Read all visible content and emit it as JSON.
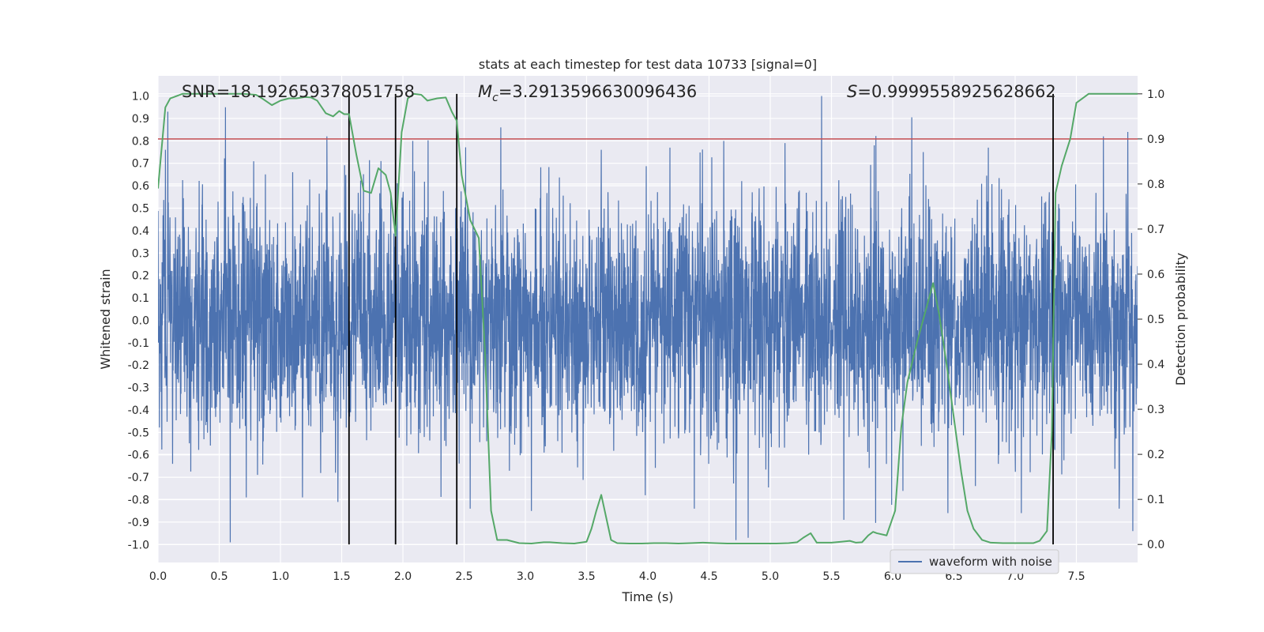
{
  "chart_data": {
    "type": "line",
    "title": "stats at each timestep for test data 10733 [signal=0]",
    "xlabel": "Time (s)",
    "ylabel_left": "Whitened strain",
    "ylabel_right": "Detection probability",
    "xlim": [
      0.0,
      8.0
    ],
    "ylim_left": [
      -1.08,
      1.09
    ],
    "ylim_right": [
      -0.04,
      1.04
    ],
    "x_ticks": [
      "0.0",
      "0.5",
      "1.0",
      "1.5",
      "2.0",
      "2.5",
      "3.0",
      "3.5",
      "4.0",
      "4.5",
      "5.0",
      "5.5",
      "6.0",
      "6.5",
      "7.0",
      "7.5"
    ],
    "y_ticks_left": [
      "1.0",
      "0.9",
      "0.8",
      "0.7",
      "0.6",
      "0.5",
      "0.4",
      "0.3",
      "0.2",
      "0.1",
      "0.0",
      "-0.1",
      "-0.2",
      "-0.3",
      "-0.4",
      "-0.5",
      "-0.6",
      "-0.7",
      "-0.8",
      "-0.9",
      "-1.0"
    ],
    "y_ticks_right": [
      "1.0",
      "0.9",
      "0.8",
      "0.7",
      "0.6",
      "0.5",
      "0.4",
      "0.3",
      "0.2",
      "0.1",
      "0.0"
    ],
    "grid": true,
    "legend": {
      "label": "waveform with noise",
      "location": "lower-right"
    },
    "annotations": {
      "snr": "SNR=18.192659378051758",
      "mc_symbol": "M",
      "mc_subscript": "c",
      "mc_value": "=3.2913596630096436",
      "s_symbol": "S",
      "s_value": "=0.9999558925628662"
    },
    "threshold": {
      "value": 0.9,
      "axis": "right",
      "color": "#c44e52"
    },
    "vertical_lines_x": [
      1.56,
      1.94,
      2.44,
      7.31
    ],
    "waveform": {
      "color": "#4c72b0",
      "samples": 4096,
      "typical_amplitude": 0.42,
      "spikes": [
        [
          0.06,
          0.76
        ],
        [
          0.08,
          0.93
        ],
        [
          0.12,
          -0.64
        ],
        [
          0.55,
          0.95
        ],
        [
          0.59,
          -0.99
        ],
        [
          0.72,
          -0.79
        ],
        [
          1.1,
          0.66
        ],
        [
          1.18,
          -0.79
        ],
        [
          1.38,
          0.82
        ],
        [
          1.47,
          -0.81
        ],
        [
          1.82,
          0.71
        ],
        [
          2.08,
          0.8
        ],
        [
          2.55,
          -0.84
        ],
        [
          2.8,
          0.86
        ],
        [
          3.05,
          -0.85
        ],
        [
          3.62,
          0.76
        ],
        [
          3.98,
          -0.78
        ],
        [
          4.18,
          0.77
        ],
        [
          4.38,
          -0.84
        ],
        [
          4.62,
          0.8
        ],
        [
          4.72,
          -0.98
        ],
        [
          4.82,
          -0.97
        ],
        [
          5.12,
          0.79
        ],
        [
          5.42,
          1.0
        ],
        [
          5.6,
          -0.89
        ],
        [
          5.85,
          0.78
        ],
        [
          6.25,
          0.75
        ],
        [
          6.45,
          -0.86
        ],
        [
          6.78,
          0.77
        ],
        [
          7.05,
          -0.86
        ],
        [
          7.72,
          0.82
        ],
        [
          7.85,
          -0.84
        ],
        [
          7.92,
          0.84
        ],
        [
          7.96,
          -0.94
        ]
      ]
    },
    "detection_probability": {
      "color": "#55a868",
      "x": [
        0.0,
        0.06,
        0.1,
        0.2,
        0.3,
        0.5,
        0.7,
        0.8,
        0.85,
        0.93,
        1.0,
        1.07,
        1.13,
        1.2,
        1.25,
        1.3,
        1.37,
        1.43,
        1.48,
        1.52,
        1.56,
        1.62,
        1.68,
        1.74,
        1.8,
        1.86,
        1.9,
        1.94,
        1.99,
        2.04,
        2.09,
        2.15,
        2.2,
        2.28,
        2.35,
        2.4,
        2.44,
        2.48,
        2.55,
        2.62,
        2.67,
        2.72,
        2.77,
        2.85,
        2.95,
        3.05,
        3.15,
        3.2,
        3.3,
        3.4,
        3.5,
        3.54,
        3.58,
        3.62,
        3.7,
        3.75,
        3.85,
        3.95,
        4.05,
        4.15,
        4.25,
        4.35,
        4.45,
        4.55,
        4.65,
        4.75,
        4.85,
        4.95,
        5.05,
        5.15,
        5.22,
        5.27,
        5.33,
        5.38,
        5.5,
        5.58,
        5.65,
        5.7,
        5.75,
        5.8,
        5.84,
        5.87,
        5.95,
        6.02,
        6.07,
        6.12,
        6.2,
        6.27,
        6.33,
        6.38,
        6.44,
        6.5,
        6.56,
        6.61,
        6.66,
        6.73,
        6.8,
        6.9,
        7.0,
        7.1,
        7.15,
        7.2,
        7.26,
        7.3,
        7.33,
        7.38,
        7.45,
        7.5,
        7.6,
        7.7,
        7.8,
        7.9,
        8.0
      ],
      "y": [
        0.79,
        0.97,
        0.99,
        1.0,
        1.0,
        1.0,
        1.0,
        0.998,
        0.99,
        0.975,
        0.985,
        0.99,
        0.99,
        0.993,
        0.992,
        0.985,
        0.957,
        0.95,
        0.962,
        0.955,
        0.955,
        0.865,
        0.785,
        0.78,
        0.835,
        0.82,
        0.78,
        0.685,
        0.915,
        0.99,
        1.0,
        0.998,
        0.985,
        0.99,
        0.992,
        0.96,
        0.94,
        0.82,
        0.72,
        0.68,
        0.43,
        0.075,
        0.01,
        0.01,
        0.003,
        0.002,
        0.005,
        0.005,
        0.003,
        0.002,
        0.006,
        0.035,
        0.075,
        0.11,
        0.01,
        0.003,
        0.002,
        0.002,
        0.003,
        0.003,
        0.002,
        0.003,
        0.004,
        0.003,
        0.002,
        0.002,
        0.002,
        0.002,
        0.002,
        0.003,
        0.005,
        0.015,
        0.025,
        0.004,
        0.004,
        0.006,
        0.008,
        0.004,
        0.005,
        0.02,
        0.028,
        0.025,
        0.02,
        0.075,
        0.26,
        0.36,
        0.45,
        0.52,
        0.58,
        0.51,
        0.4,
        0.28,
        0.16,
        0.075,
        0.035,
        0.01,
        0.004,
        0.003,
        0.003,
        0.003,
        0.003,
        0.008,
        0.03,
        0.25,
        0.78,
        0.84,
        0.9,
        0.98,
        1.0,
        1.0,
        1.0,
        1.0,
        1.0
      ]
    }
  }
}
